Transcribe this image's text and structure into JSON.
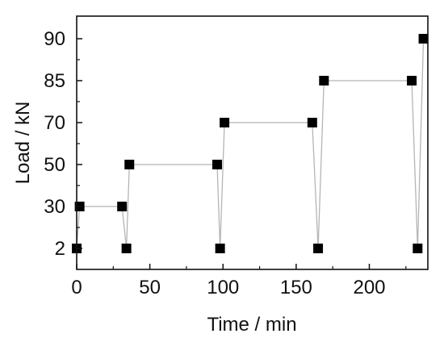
{
  "chart_data": {
    "type": "scatter",
    "xlabel": "Time / min",
    "ylabel": "Load / kN",
    "xlim": [
      0,
      240
    ],
    "x_ticks": [
      0,
      50,
      100,
      150,
      200
    ],
    "y_categories": [
      "2",
      "30",
      "50",
      "70",
      "85",
      "90"
    ],
    "series": [
      {
        "x": [
          0,
          2,
          31,
          34,
          36,
          96,
          98,
          101,
          161,
          165,
          169,
          229,
          233,
          237
        ],
        "y": [
          "2",
          "30",
          "30",
          "2",
          "50",
          "50",
          "2",
          "70",
          "70",
          "2",
          "85",
          "85",
          "2",
          "90"
        ],
        "marker": "square",
        "marker_color": "#000000",
        "line_color": "#b5b5b5"
      }
    ],
    "grid": false,
    "legend": "none"
  }
}
